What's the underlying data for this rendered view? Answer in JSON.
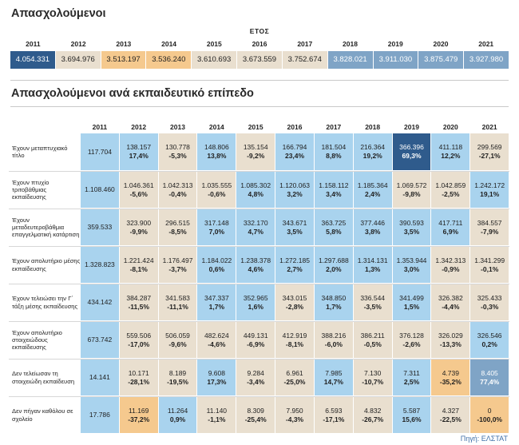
{
  "title_top": "Απασχολούμενοι",
  "title_bottom": "Απασχολούμενοι ανά εκπαιδευτικό επίπεδο",
  "etos_label": "ΕΤΟΣ",
  "source": "Πηγή: ΕΛΣΤΑΤ",
  "colors": {
    "beige": "#e9dfcf",
    "lightblue": "#a9d3ee",
    "orange": "#f5c98e",
    "steel": "#7fa4c6",
    "navy": "#2f5b8c"
  },
  "chart_data": [
    {
      "type": "table",
      "title": "Απασχολούμενοι",
      "header": "ΕΤΟΣ",
      "categories": [
        "2011",
        "2012",
        "2013",
        "2014",
        "2015",
        "2016",
        "2017",
        "2018",
        "2019",
        "2020",
        "2021"
      ],
      "values": [
        "4.054.331",
        "3.694.976",
        "3.513.197",
        "3.536.240",
        "3.610.693",
        "3.673.559",
        "3.752.674",
        "3.828.021",
        "3.911.030",
        "3.875.479",
        "3.927.980"
      ],
      "cell_colors": [
        "navy",
        "beige",
        "orange",
        "orange",
        "beige",
        "beige",
        "beige",
        "steel",
        "steel",
        "steel",
        "steel"
      ]
    },
    {
      "type": "table",
      "title": "Απασχολούμενοι ανά εκπαιδευτικό επίπεδο",
      "categories": [
        "2011",
        "2012",
        "2013",
        "2014",
        "2015",
        "2016",
        "2017",
        "2018",
        "2019",
        "2020",
        "2021"
      ],
      "rows": [
        {
          "label": "Έχουν μεταπτυχιακό τίτλο",
          "values": [
            "117.704",
            "138.157",
            "130.778",
            "148.806",
            "135.154",
            "166.794",
            "181.504",
            "216.364",
            "366.396",
            "411.118",
            "299.569"
          ],
          "changes": [
            "",
            "17,4%",
            "-5,3%",
            "13,8%",
            "-9,2%",
            "23,4%",
            "8,8%",
            "19,2%",
            "69,3%",
            "12,2%",
            "-27,1%"
          ],
          "cell_colors": [
            "lightblue",
            "lightblue",
            "beige",
            "lightblue",
            "beige",
            "lightblue",
            "lightblue",
            "lightblue",
            "navy",
            "lightblue",
            "beige"
          ]
        },
        {
          "label": "Έχουν πτυχίο τριτοβάθμιας εκπαίδευσης",
          "values": [
            "1.108.460",
            "1.046.361",
            "1.042.313",
            "1.035.555",
            "1.085.302",
            "1.120.063",
            "1.158.112",
            "1.185.364",
            "1.069.572",
            "1.042.859",
            "1.242.172"
          ],
          "changes": [
            "",
            "-5,6%",
            "-0,4%",
            "-0,6%",
            "4,8%",
            "3,2%",
            "3,4%",
            "2,4%",
            "-9,8%",
            "-2,5%",
            "19,1%"
          ],
          "cell_colors": [
            "lightblue",
            "beige",
            "beige",
            "beige",
            "lightblue",
            "lightblue",
            "lightblue",
            "lightblue",
            "beige",
            "beige",
            "lightblue"
          ]
        },
        {
          "label": "Έχουν μεταδευτεροβάθμια επαγγελματική κατάρτιση",
          "values": [
            "359.533",
            "323.900",
            "296.515",
            "317.148",
            "332.170",
            "343.671",
            "363.725",
            "377.446",
            "390.593",
            "417.711",
            "384.557"
          ],
          "changes": [
            "",
            "-9,9%",
            "-8,5%",
            "7,0%",
            "4,7%",
            "3,5%",
            "5,8%",
            "3,8%",
            "3,5%",
            "6,9%",
            "-7,9%"
          ],
          "cell_colors": [
            "lightblue",
            "beige",
            "beige",
            "lightblue",
            "lightblue",
            "lightblue",
            "lightblue",
            "lightblue",
            "lightblue",
            "lightblue",
            "beige"
          ]
        },
        {
          "label": "Έχουν απολυτήριο μέσης εκπαίδευσης",
          "values": [
            "1.328.823",
            "1.221.424",
            "1.176.497",
            "1.184.022",
            "1.238.378",
            "1.272.185",
            "1.297.688",
            "1.314.131",
            "1.353.944",
            "1.342.313",
            "1.341.299"
          ],
          "changes": [
            "",
            "-8,1%",
            "-3,7%",
            "0,6%",
            "4,6%",
            "2,7%",
            "2,0%",
            "1,3%",
            "3,0%",
            "-0,9%",
            "-0,1%"
          ],
          "cell_colors": [
            "lightblue",
            "beige",
            "beige",
            "lightblue",
            "lightblue",
            "lightblue",
            "lightblue",
            "lightblue",
            "lightblue",
            "beige",
            "beige"
          ]
        },
        {
          "label": "Έχουν τελειώσει την Γ΄ τάξη μέσης εκπαίδευσης",
          "values": [
            "434.142",
            "384.287",
            "341.583",
            "347.337",
            "352.965",
            "343.015",
            "348.850",
            "336.544",
            "341.499",
            "326.382",
            "325.433"
          ],
          "changes": [
            "",
            "-11,5%",
            "-11,1%",
            "1,7%",
            "1,6%",
            "-2,8%",
            "1,7%",
            "-3,5%",
            "1,5%",
            "-4,4%",
            "-0,3%"
          ],
          "cell_colors": [
            "lightblue",
            "beige",
            "beige",
            "lightblue",
            "lightblue",
            "beige",
            "lightblue",
            "beige",
            "lightblue",
            "beige",
            "beige"
          ]
        },
        {
          "label": "Έχουν απολυτήριο στοιχειώδους εκπαίδευσης",
          "values": [
            "673.742",
            "559.506",
            "506.059",
            "482.624",
            "449.131",
            "412.919",
            "388.216",
            "386.211",
            "376.128",
            "326.029",
            "326.546"
          ],
          "changes": [
            "",
            "-17,0%",
            "-9,6%",
            "-4,6%",
            "-6,9%",
            "-8,1%",
            "-6,0%",
            "-0,5%",
            "-2,6%",
            "-13,3%",
            "0,2%"
          ],
          "cell_colors": [
            "lightblue",
            "beige",
            "beige",
            "beige",
            "beige",
            "beige",
            "beige",
            "beige",
            "beige",
            "beige",
            "lightblue"
          ]
        },
        {
          "label": "Δεν τελείωσαν τη στοιχειώδη εκπαίδευση",
          "values": [
            "14.141",
            "10.171",
            "8.189",
            "9.608",
            "9.284",
            "6.961",
            "7.985",
            "7.130",
            "7.311",
            "4.739",
            "8.405"
          ],
          "changes": [
            "",
            "-28,1%",
            "-19,5%",
            "17,3%",
            "-3,4%",
            "-25,0%",
            "14,7%",
            "-10,7%",
            "2,5%",
            "-35,2%",
            "77,4%"
          ],
          "cell_colors": [
            "lightblue",
            "beige",
            "beige",
            "lightblue",
            "beige",
            "beige",
            "lightblue",
            "beige",
            "lightblue",
            "orange",
            "steel"
          ]
        },
        {
          "label": "Δεν πήγαν καθόλου σε σχολείο",
          "values": [
            "17.786",
            "11.169",
            "11.264",
            "11.140",
            "8.309",
            "7.950",
            "6.593",
            "4.832",
            "5.587",
            "4.327",
            "0"
          ],
          "changes": [
            "",
            "-37,2%",
            "0,9%",
            "-1,1%",
            "-25,4%",
            "-4,3%",
            "-17,1%",
            "-26,7%",
            "15,6%",
            "-22,5%",
            "-100,0%"
          ],
          "cell_colors": [
            "lightblue",
            "orange",
            "lightblue",
            "beige",
            "beige",
            "beige",
            "beige",
            "beige",
            "lightblue",
            "beige",
            "orange"
          ]
        }
      ]
    }
  ]
}
